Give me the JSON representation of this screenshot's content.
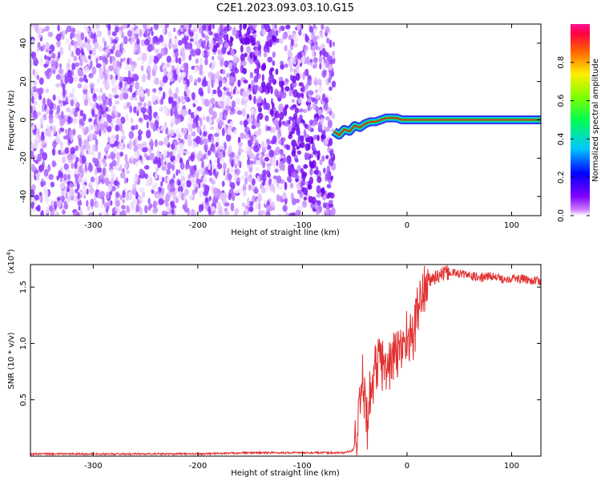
{
  "title": "C2E1.2023.093.03.10.G15",
  "colors": {
    "snr_line": "#e0302f",
    "noise": "#7a1cf0",
    "track_core": "#e0202a",
    "track_mid": "#22cc33",
    "track_edge": "#1a20e0"
  },
  "chart_data": [
    {
      "type": "heatmap",
      "name": "spectrogram",
      "xlabel": "Height of straight line (km)",
      "ylabel": "Frequency (Hz)",
      "xlim": [
        -360,
        128
      ],
      "ylim": [
        -50,
        50
      ],
      "x_ticks": [
        -300,
        -200,
        -100,
        0,
        100
      ],
      "y_ticks": [
        -40,
        -20,
        0,
        20,
        40
      ],
      "grid": false,
      "noise_region_x": [
        -360,
        -70
      ],
      "signal_track": {
        "x": [
          -70,
          -65,
          -60,
          -55,
          -50,
          -45,
          -40,
          -35,
          -30,
          -25,
          -20,
          -15,
          -10,
          -5,
          0,
          10,
          30,
          60,
          90,
          128
        ],
        "y": [
          -6,
          -8,
          -5,
          -6,
          -3,
          -4,
          -2,
          -1,
          -1,
          0,
          1,
          1,
          1,
          0,
          0,
          0,
          0,
          0,
          0,
          0
        ]
      },
      "colorbar": {
        "label": "Normalized spectral amplitude",
        "range": [
          0,
          1
        ],
        "ticks": [
          "0.0",
          "0.2",
          "0.4",
          "0.6",
          "0.8"
        ],
        "tick_values": [
          0.0,
          0.2,
          0.4,
          0.6,
          0.8
        ],
        "colormap": "rainbow (white-magenta at 0 to red-pink at 1)"
      }
    },
    {
      "type": "line",
      "name": "snr",
      "xlabel": "Height of straight line (km)",
      "ylabel": "SNR (10 * v/v)",
      "ylabel_multiplier": "(x10",
      "ylabel_multiplier_exp": "4",
      "xlim": [
        -360,
        128
      ],
      "ylim": [
        0,
        1.7
      ],
      "x_ticks": [
        -300,
        -200,
        -100,
        0,
        100
      ],
      "y_ticks": [
        0.5,
        1.0,
        1.5
      ],
      "y_tick_labels": [
        "0.5",
        "1.0",
        "1.5"
      ],
      "grid": false,
      "series": [
        {
          "x": [
            -360,
            -300,
            -250,
            -200,
            -150,
            -100,
            -80,
            -60,
            -52,
            -48,
            -45,
            -42,
            -40,
            -38,
            -36,
            -34,
            -30,
            -25,
            -20,
            -15,
            -10,
            -5,
            0,
            5,
            10,
            15,
            20,
            25,
            30,
            40,
            50,
            60,
            70,
            80,
            90,
            100,
            110,
            120,
            128
          ],
          "y": [
            0.02,
            0.02,
            0.02,
            0.02,
            0.03,
            0.03,
            0.03,
            0.03,
            0.05,
            0.15,
            0.4,
            0.7,
            0.45,
            0.3,
            0.5,
            0.6,
            0.8,
            0.85,
            0.75,
            0.85,
            0.9,
            0.95,
            1.1,
            1.0,
            1.3,
            1.45,
            1.55,
            1.58,
            1.6,
            1.63,
            1.62,
            1.6,
            1.58,
            1.6,
            1.57,
            1.58,
            1.57,
            1.56,
            1.55
          ]
        }
      ]
    }
  ]
}
